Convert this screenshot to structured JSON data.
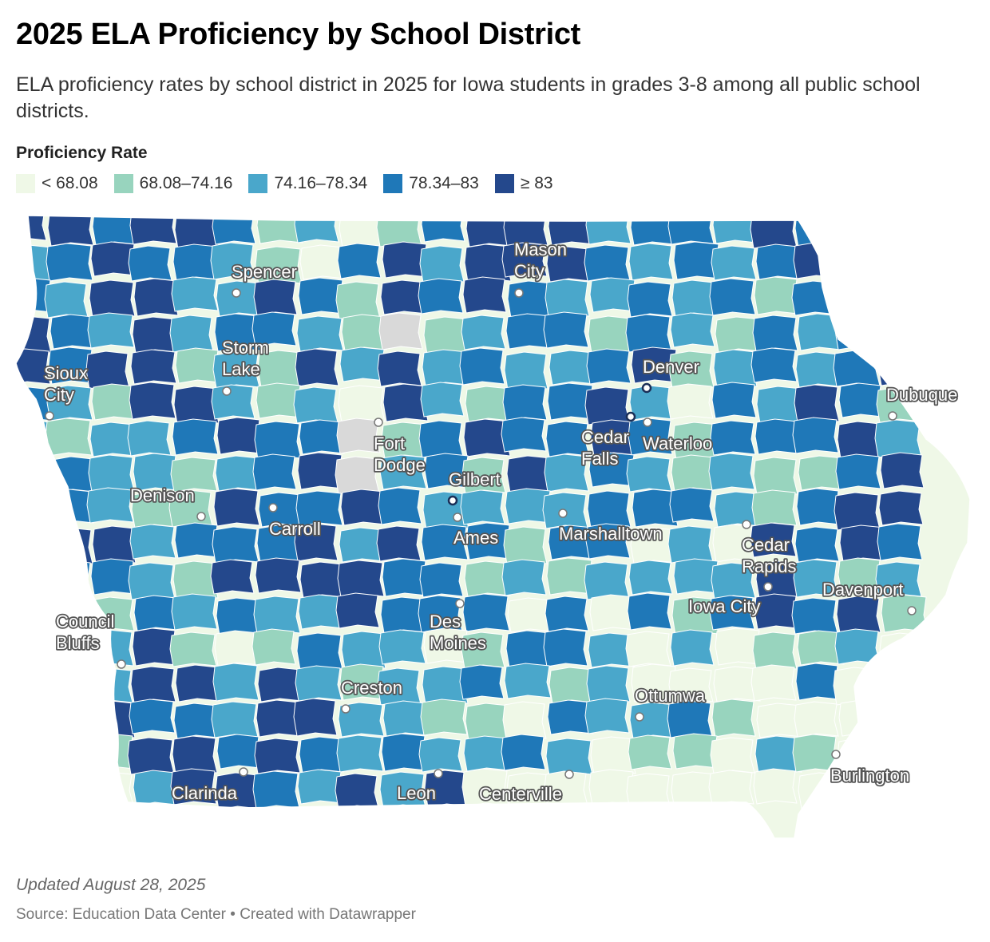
{
  "title": "2025 ELA Proficiency by School District",
  "subtitle": "ELA proficiency rates by school district in 2025 for Iowa students in grades 3-8 among all public school districts.",
  "legend": {
    "title": "Proficiency Rate",
    "items": [
      {
        "label": "< 68.08",
        "color": "#eff8e7"
      },
      {
        "label": "68.08–74.16",
        "color": "#98d4be"
      },
      {
        "label": "74.16–78.34",
        "color": "#4aa7cb"
      },
      {
        "label": "78.34–83",
        "color": "#1f78b8"
      },
      {
        "label": "≥ 83",
        "color": "#24488c"
      }
    ]
  },
  "no_data_color": "#d9d9d9",
  "cities": [
    {
      "name": "Mason\nCity"
    },
    {
      "name": "Spencer"
    },
    {
      "name": "Storm\nLake"
    },
    {
      "name": "Sioux\nCity"
    },
    {
      "name": "Denver"
    },
    {
      "name": "Dubuque"
    },
    {
      "name": "Fort\nDodge"
    },
    {
      "name": "Cedar\nFalls"
    },
    {
      "name": "Waterloo"
    },
    {
      "name": "Gilbert"
    },
    {
      "name": "Denison"
    },
    {
      "name": "Ames"
    },
    {
      "name": "Carroll"
    },
    {
      "name": "Marshalltown"
    },
    {
      "name": "Cedar\nRapids"
    },
    {
      "name": "Davenport"
    },
    {
      "name": "Iowa City"
    },
    {
      "name": "Council\nBluffs"
    },
    {
      "name": "Des\nMoines"
    },
    {
      "name": "Creston"
    },
    {
      "name": "Ottumwa"
    },
    {
      "name": "Burlington"
    },
    {
      "name": "Clarinda"
    },
    {
      "name": "Leon"
    },
    {
      "name": "Centerville"
    }
  ],
  "footer": {
    "updated": "Updated August 28, 2025",
    "source": "Source: Education Data Center • Created with Datawrapper"
  }
}
